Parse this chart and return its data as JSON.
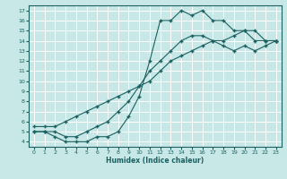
{
  "title": "",
  "xlabel": "Humidex (Indice chaleur)",
  "xlim": [
    -0.5,
    23.5
  ],
  "ylim": [
    3.5,
    17.5
  ],
  "xticks": [
    0,
    1,
    2,
    3,
    4,
    5,
    6,
    7,
    8,
    9,
    10,
    11,
    12,
    13,
    14,
    15,
    16,
    17,
    18,
    19,
    20,
    21,
    22,
    23
  ],
  "yticks": [
    4,
    5,
    6,
    7,
    8,
    9,
    10,
    11,
    12,
    13,
    14,
    15,
    16,
    17
  ],
  "bg_color": "#c8e8e8",
  "line_color": "#1a6060",
  "grid_color": "#ffffff",
  "line1_x": [
    0,
    1,
    2,
    3,
    4,
    5,
    6,
    7,
    8,
    9,
    10,
    11,
    12,
    13,
    14,
    15,
    16,
    17,
    18,
    19,
    20,
    21,
    22,
    23
  ],
  "line1_y": [
    5,
    5,
    4.5,
    4,
    4,
    4,
    4.5,
    4.5,
    5,
    6.5,
    8.5,
    12,
    16,
    16,
    17,
    16.5,
    17,
    16,
    16,
    15,
    15,
    14,
    14,
    14
  ],
  "line2_x": [
    0,
    1,
    2,
    3,
    4,
    5,
    6,
    7,
    8,
    9,
    10,
    11,
    12,
    13,
    14,
    15,
    16,
    17,
    18,
    19,
    20,
    21,
    22,
    23
  ],
  "line2_y": [
    5,
    5,
    5,
    4.5,
    4.5,
    5,
    5.5,
    6,
    7,
    8,
    9.5,
    11,
    12,
    13,
    14,
    14.5,
    14.5,
    14,
    13.5,
    13,
    13.5,
    13,
    13.5,
    14
  ],
  "line3_x": [
    0,
    1,
    2,
    3,
    4,
    5,
    6,
    7,
    8,
    9,
    10,
    11,
    12,
    13,
    14,
    15,
    16,
    17,
    18,
    19,
    20,
    21,
    22,
    23
  ],
  "line3_y": [
    5.5,
    5.5,
    5.5,
    6,
    6.5,
    7,
    7.5,
    8,
    8.5,
    9,
    9.5,
    10,
    11,
    12,
    12.5,
    13,
    13.5,
    14,
    14,
    14.5,
    15,
    15,
    14,
    14
  ]
}
